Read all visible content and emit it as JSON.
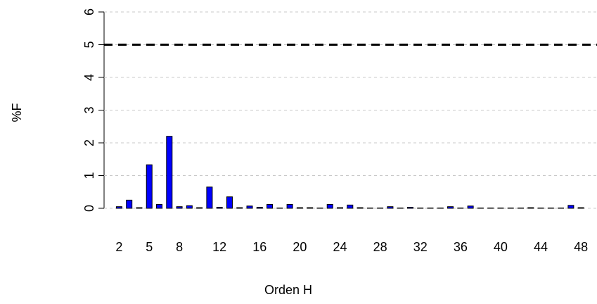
{
  "chart_data": {
    "type": "bar",
    "x": [
      2,
      3,
      4,
      5,
      6,
      7,
      8,
      9,
      10,
      11,
      12,
      13,
      14,
      15,
      16,
      17,
      18,
      19,
      20,
      21,
      22,
      23,
      24,
      25,
      26,
      27,
      28,
      29,
      30,
      31,
      32,
      33,
      34,
      35,
      36,
      37,
      38,
      39,
      40,
      41,
      42,
      43,
      44,
      45,
      46,
      47,
      48
    ],
    "values": [
      0.05,
      0.25,
      0.02,
      1.33,
      0.12,
      2.2,
      0.05,
      0.08,
      0.02,
      0.65,
      0.03,
      0.35,
      0.02,
      0.07,
      0.03,
      0.12,
      0.01,
      0.12,
      0.02,
      0.02,
      0.01,
      0.12,
      0.02,
      0.1,
      0.02,
      0.01,
      0.01,
      0.05,
      0.01,
      0.03,
      0.01,
      0.01,
      0.01,
      0.05,
      0.01,
      0.07,
      0.01,
      0.01,
      0.01,
      0.01,
      0.01,
      0.02,
      0.01,
      0.01,
      0.01,
      0.09,
      0.02
    ],
    "color": "#0000ff",
    "xlabel": "Orden H",
    "ylabel": "%F",
    "xlim": [
      0.5,
      49.6
    ],
    "xticks": [
      2,
      5,
      8,
      12,
      16,
      20,
      24,
      28,
      32,
      36,
      40,
      44,
      48
    ],
    "ylim": [
      0,
      6
    ],
    "yticks": [
      0,
      1,
      2,
      3,
      4,
      5,
      6
    ],
    "threshold": 5,
    "grid": true
  }
}
